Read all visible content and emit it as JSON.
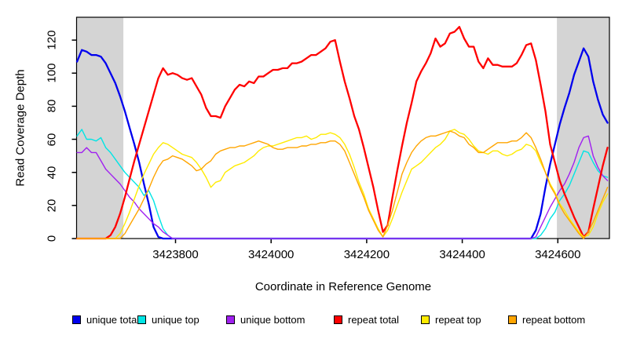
{
  "axis_color": "#000000",
  "background_color": "#FFFFFF",
  "chart_data": {
    "type": "line",
    "title": "",
    "xlabel": "Coordinate in Reference Genome",
    "ylabel": "Read Coverage Depth",
    "xlim": [
      3423593,
      3424708
    ],
    "ylim": [
      0,
      133.8
    ],
    "x_ticks": [
      3423800,
      3424000,
      3424200,
      3424400,
      3424600
    ],
    "y_ticks": [
      0,
      20,
      40,
      60,
      80,
      100,
      120
    ],
    "grid": false,
    "legend_position": "bottom",
    "shaded_regions": [
      {
        "x0": 3423593,
        "x1": 3423691,
        "color": "#D4D4D4"
      },
      {
        "x0": 3424598,
        "x1": 3424708,
        "color": "#D4D4D4"
      }
    ],
    "x_start": 3423594,
    "x_step": 10,
    "series": [
      {
        "name": "unique total",
        "color": "#0000EE",
        "width": 2.3,
        "values": [
          107,
          114,
          113,
          111,
          111,
          110,
          106,
          100,
          94,
          86,
          77,
          67,
          57,
          46,
          33,
          21,
          7,
          1,
          0,
          0,
          0,
          0,
          0,
          0,
          0,
          0,
          0,
          0,
          0,
          0,
          0,
          0,
          0,
          0,
          0,
          0,
          0,
          0,
          0,
          0,
          0,
          0,
          0,
          0,
          0,
          0,
          0,
          0,
          0,
          0,
          0,
          0,
          0,
          0,
          0,
          0,
          0,
          0,
          0,
          0,
          0,
          0,
          0,
          0,
          0,
          0,
          0,
          0,
          0,
          0,
          0,
          0,
          0,
          0,
          0,
          0,
          0,
          0,
          0,
          0,
          0,
          0,
          0,
          0,
          0,
          0,
          0,
          0,
          0,
          0,
          0,
          0,
          0,
          0,
          0,
          0,
          5,
          15,
          31,
          45,
          57,
          69,
          79,
          88,
          99,
          107,
          115,
          110,
          95,
          84,
          75,
          70
        ]
      },
      {
        "name": "unique top",
        "color": "#00E5E5",
        "width": 1.4,
        "values": [
          62,
          66,
          60,
          60,
          59,
          61,
          55,
          52,
          48,
          44,
          40,
          37,
          34,
          31,
          26,
          29,
          23,
          14,
          6,
          2,
          0,
          0,
          0,
          0,
          0,
          0,
          0,
          0,
          0,
          0,
          0,
          0,
          0,
          0,
          0,
          0,
          0,
          0,
          0,
          0,
          0,
          0,
          0,
          0,
          0,
          0,
          0,
          0,
          0,
          0,
          0,
          0,
          0,
          0,
          0,
          0,
          0,
          0,
          0,
          0,
          0,
          0,
          0,
          0,
          0,
          0,
          0,
          0,
          0,
          0,
          0,
          0,
          0,
          0,
          0,
          0,
          0,
          0,
          0,
          0,
          0,
          0,
          0,
          0,
          0,
          0,
          0,
          0,
          0,
          0,
          0,
          0,
          0,
          0,
          0,
          0,
          0,
          2,
          6,
          12,
          16,
          23,
          27,
          32,
          39,
          46,
          53,
          52,
          46,
          41,
          38,
          37
        ]
      },
      {
        "name": "unique bottom",
        "color": "#A020F0",
        "width": 1.4,
        "values": [
          52,
          52,
          55,
          52,
          52,
          47,
          42,
          39,
          36,
          33,
          29,
          25,
          22,
          18,
          15,
          12,
          9,
          7,
          4,
          2,
          0,
          0,
          0,
          0,
          0,
          0,
          0,
          0,
          0,
          0,
          0,
          0,
          0,
          0,
          0,
          0,
          0,
          0,
          0,
          0,
          0,
          0,
          0,
          0,
          0,
          0,
          0,
          0,
          0,
          0,
          0,
          0,
          0,
          0,
          0,
          0,
          0,
          0,
          0,
          0,
          0,
          0,
          0,
          0,
          0,
          0,
          0,
          0,
          0,
          0,
          0,
          0,
          0,
          0,
          0,
          0,
          0,
          0,
          0,
          0,
          0,
          0,
          0,
          0,
          0,
          0,
          0,
          0,
          0,
          0,
          0,
          0,
          0,
          0,
          0,
          0,
          1,
          7,
          13,
          19,
          24,
          29,
          33,
          39,
          46,
          55,
          61,
          62,
          50,
          43,
          38,
          35
        ]
      },
      {
        "name": "repeat total",
        "color": "#FF0000",
        "width": 2.3,
        "values": [
          0,
          0,
          0,
          0,
          0,
          0,
          0,
          2,
          7,
          15,
          25,
          36,
          47,
          57,
          67,
          77,
          87,
          97,
          103,
          99,
          100,
          99,
          97,
          96,
          97,
          92,
          87,
          79,
          74,
          74,
          73,
          80,
          85,
          90,
          93,
          92,
          95,
          94,
          98,
          98,
          100,
          102,
          102,
          103,
          103,
          106,
          106,
          107,
          109,
          111,
          111,
          113,
          115,
          119,
          120,
          107,
          95,
          85,
          74,
          66,
          55,
          43,
          31,
          17,
          4,
          8,
          25,
          41,
          56,
          70,
          82,
          95,
          101,
          106,
          112,
          121,
          116,
          118,
          124,
          125,
          128,
          121,
          116,
          116,
          107,
          103,
          109,
          105,
          105,
          104,
          104,
          104,
          106,
          111,
          117,
          118,
          108,
          93,
          77,
          57,
          46,
          35,
          27,
          20,
          13,
          7,
          1,
          4,
          18,
          31,
          44,
          55
        ]
      },
      {
        "name": "repeat top",
        "color": "#FFEB00",
        "width": 1.4,
        "values": [
          0,
          0,
          0,
          0,
          0,
          0,
          0,
          0,
          0,
          3,
          9,
          16,
          24,
          32,
          39,
          45,
          51,
          55,
          58,
          57,
          55,
          53,
          51,
          50,
          49,
          46,
          42,
          37,
          31,
          34,
          35,
          40,
          42,
          44,
          45,
          46,
          48,
          50,
          53,
          55,
          56,
          56,
          57,
          58,
          59,
          60,
          61,
          61,
          62,
          60,
          61,
          63,
          63,
          64,
          63,
          61,
          57,
          51,
          43,
          34,
          27,
          18,
          12,
          6,
          1,
          5,
          12,
          20,
          28,
          35,
          42,
          44,
          46,
          49,
          52,
          55,
          57,
          60,
          65,
          66,
          64,
          63,
          60,
          56,
          53,
          52,
          51,
          53,
          53,
          51,
          50,
          51,
          53,
          54,
          57,
          56,
          53,
          46,
          40,
          33,
          28,
          21,
          17,
          12,
          8,
          4,
          1,
          2,
          7,
          15,
          22,
          27
        ]
      },
      {
        "name": "repeat bottom",
        "color": "#FFA500",
        "width": 1.4,
        "values": [
          0,
          0,
          0,
          0,
          0,
          0,
          0,
          0,
          0,
          0,
          3,
          8,
          13,
          18,
          24,
          30,
          37,
          43,
          47,
          48,
          50,
          49,
          48,
          46,
          44,
          41,
          42,
          45,
          47,
          51,
          53,
          54,
          55,
          55,
          56,
          56,
          57,
          58,
          59,
          58,
          57,
          55,
          54,
          54,
          55,
          55,
          55,
          56,
          56,
          57,
          57,
          58,
          58,
          59,
          59,
          57,
          53,
          46,
          39,
          32,
          25,
          17,
          11,
          5,
          1,
          8,
          17,
          28,
          39,
          46,
          52,
          56,
          59,
          61,
          62,
          62,
          63,
          64,
          65,
          64,
          62,
          61,
          57,
          55,
          52,
          52,
          54,
          56,
          58,
          58,
          58,
          59,
          59,
          61,
          64,
          61,
          55,
          48,
          40,
          32,
          27,
          20,
          15,
          11,
          7,
          3,
          0,
          4,
          10,
          17,
          24,
          31
        ]
      }
    ]
  }
}
